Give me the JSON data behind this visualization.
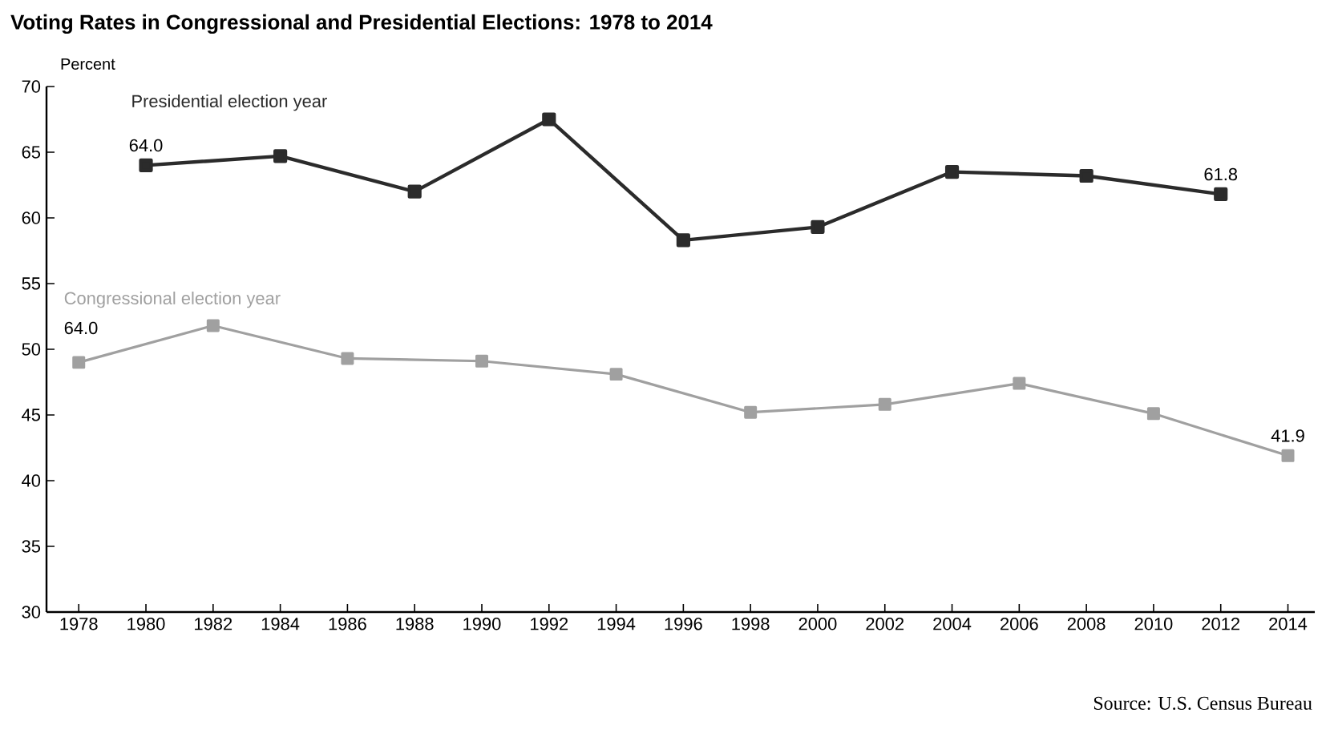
{
  "chart_data": {
    "type": "line",
    "title": "Voting Rates in Congressional and Presidential Elections: 1978 to 2014",
    "ylabel": "Percent",
    "categories": [
      "1978",
      "1980",
      "1982",
      "1984",
      "1986",
      "1988",
      "1990",
      "1992",
      "1994",
      "1996",
      "1998",
      "2000",
      "2002",
      "2004",
      "2006",
      "2008",
      "2010",
      "2012",
      "2014"
    ],
    "series": [
      {
        "name": "Presidential election year",
        "color": "#2b2b2b",
        "values": [
          null,
          64.0,
          null,
          64.7,
          null,
          62.0,
          null,
          67.5,
          null,
          58.3,
          null,
          59.3,
          null,
          63.5,
          null,
          63.2,
          null,
          61.8,
          null
        ],
        "value_labels": [
          null,
          "64.0",
          null,
          null,
          null,
          null,
          null,
          null,
          null,
          null,
          null,
          null,
          null,
          null,
          null,
          null,
          null,
          "61.8",
          null
        ]
      },
      {
        "name": "Congressional election year",
        "color": "#a0a0a0",
        "values": [
          49.0,
          null,
          51.8,
          null,
          49.3,
          null,
          49.1,
          null,
          48.1,
          null,
          45.2,
          null,
          45.8,
          null,
          47.4,
          null,
          45.1,
          null,
          41.9
        ],
        "value_labels": [
          null,
          null,
          null,
          null,
          null,
          null,
          null,
          null,
          null,
          null,
          null,
          null,
          null,
          null,
          null,
          null,
          null,
          null,
          "41.9"
        ]
      }
    ],
    "ylim": [
      30,
      70
    ],
    "yticks": [
      30,
      35,
      40,
      45,
      50,
      55,
      60,
      65,
      70
    ],
    "marker": "square",
    "line_style": "solid",
    "grid": false,
    "legend": false,
    "annotations": [
      "64.0",
      "Source: U.S. Census Bureau"
    ]
  }
}
